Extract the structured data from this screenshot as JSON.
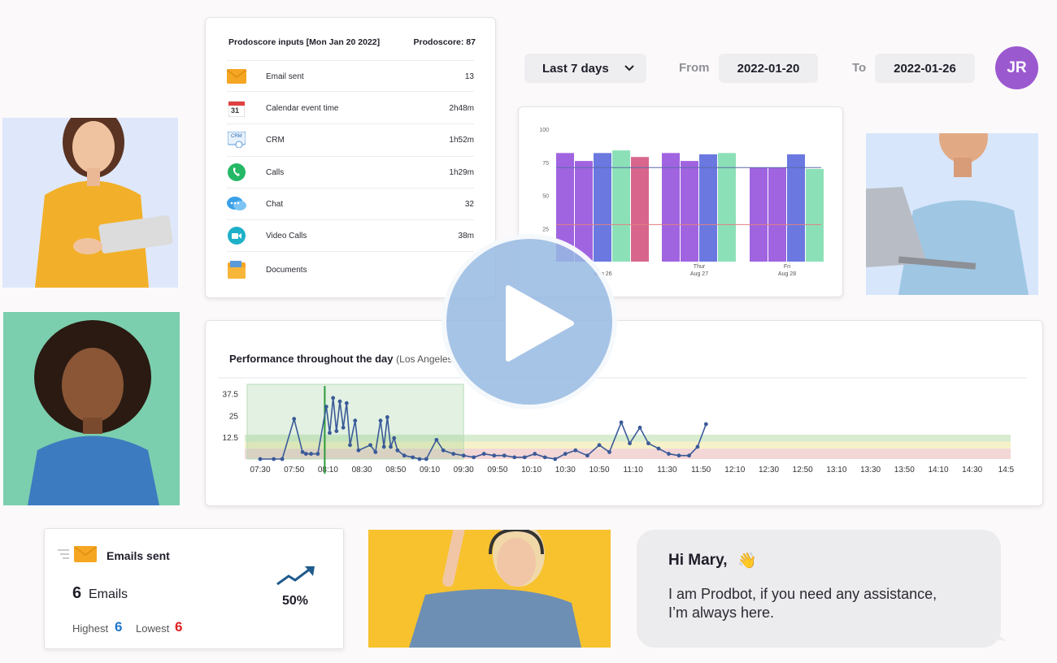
{
  "inputs_card": {
    "title": "Prodoscore inputs [Mon Jan 20 2022]",
    "score": "Prodoscore: 87",
    "rows": [
      {
        "icon": "envelope-icon",
        "label": "Email sent",
        "value": "13"
      },
      {
        "icon": "calendar-icon",
        "label": "Calendar event time",
        "value": "2h48m"
      },
      {
        "icon": "crm-icon",
        "label": "CRM",
        "value": "1h52m"
      },
      {
        "icon": "phone-icon",
        "label": "Calls",
        "value": "1h29m"
      },
      {
        "icon": "chat-icon",
        "label": "Chat",
        "value": "32"
      },
      {
        "icon": "video-icon",
        "label": "Video Calls",
        "value": "38m"
      },
      {
        "icon": "folder-icon",
        "label": "Documents",
        "value": ""
      }
    ],
    "calendar_day": "31",
    "crm_tag": "CRM"
  },
  "controls": {
    "range": "Last 7 days",
    "from_label": "From",
    "from_value": "2022-01-20",
    "to_label": "To",
    "to_value": "2022-01-26",
    "avatar_initials": "JR"
  },
  "colors": {
    "purple": "#a064e0",
    "blue": "#6b78e0",
    "green": "#8ce0b8",
    "pink": "#d8668c",
    "line": "#3a5a98",
    "accent_blue": "#1f77c9",
    "accent_red": "#e02020",
    "avatar": "#9b59d0"
  },
  "chart_data": [
    {
      "type": "bar",
      "ylim": [
        0,
        100
      ],
      "yticks": [
        "100",
        "75",
        "50",
        "25"
      ],
      "groups": [
        {
          "label": "",
          "date": "Aug 26",
          "values": [
            82,
            76,
            82,
            84,
            79
          ],
          "colors": [
            "#a064e0",
            "#a064e0",
            "#6b78e0",
            "#8ce0b8",
            "#d8668c"
          ]
        },
        {
          "label": "Thur",
          "date": "Aug 27",
          "values": [
            82,
            76,
            81,
            82
          ],
          "colors": [
            "#a064e0",
            "#a064e0",
            "#6b78e0",
            "#8ce0b8"
          ]
        },
        {
          "label": "Fri",
          "date": "Aug 28",
          "values": [
            71,
            71,
            81,
            70
          ],
          "colors": [
            "#a064e0",
            "#a064e0",
            "#6b78e0",
            "#8ce0b8"
          ]
        }
      ],
      "reference_lines": [
        71,
        28
      ]
    },
    {
      "type": "line",
      "title": "Performance throughout the day",
      "subtitle": "(Los Angeles)",
      "ylim": [
        0,
        40
      ],
      "yticks": [
        "37.5",
        "25",
        "12.5"
      ],
      "xticks": [
        "07:30",
        "07:50",
        "08:10",
        "08:30",
        "08:50",
        "09:10",
        "09:30",
        "09:50",
        "10:10",
        "10:30",
        "10:50",
        "11:10",
        "11:30",
        "11:50",
        "12:10",
        "12:30",
        "12:50",
        "13:10",
        "13:30",
        "13:50",
        "14:10",
        "14:30",
        "14:5"
      ],
      "points": [
        [
          0,
          0
        ],
        [
          0.8,
          0
        ],
        [
          1.3,
          0
        ],
        [
          2.0,
          23
        ],
        [
          2.5,
          4
        ],
        [
          2.7,
          3
        ],
        [
          3.0,
          3
        ],
        [
          3.4,
          3
        ],
        [
          3.9,
          30
        ],
        [
          4.1,
          15
        ],
        [
          4.3,
          35
        ],
        [
          4.5,
          16
        ],
        [
          4.7,
          33
        ],
        [
          4.9,
          18
        ],
        [
          5.1,
          32
        ],
        [
          5.3,
          8
        ],
        [
          5.6,
          22
        ],
        [
          5.8,
          5
        ],
        [
          6.5,
          8
        ],
        [
          6.8,
          4
        ],
        [
          7.1,
          22
        ],
        [
          7.3,
          7
        ],
        [
          7.5,
          24
        ],
        [
          7.7,
          7
        ],
        [
          7.9,
          12
        ],
        [
          8.1,
          5
        ],
        [
          8.5,
          2
        ],
        [
          9.0,
          1
        ],
        [
          9.4,
          0
        ],
        [
          9.8,
          0
        ],
        [
          10.4,
          11
        ],
        [
          10.8,
          5
        ],
        [
          11.4,
          3
        ],
        [
          12.0,
          2
        ],
        [
          12.6,
          1
        ],
        [
          13.2,
          3
        ],
        [
          13.8,
          2
        ],
        [
          14.4,
          2
        ],
        [
          15.0,
          1
        ],
        [
          15.6,
          1
        ],
        [
          16.2,
          3
        ],
        [
          16.8,
          1
        ],
        [
          17.4,
          0
        ],
        [
          18.0,
          3
        ],
        [
          18.6,
          5
        ],
        [
          19.3,
          2
        ],
        [
          20.0,
          8
        ],
        [
          20.6,
          4
        ],
        [
          21.3,
          21
        ],
        [
          21.8,
          9
        ],
        [
          22.4,
          18
        ],
        [
          22.9,
          9
        ],
        [
          23.5,
          6
        ],
        [
          24.1,
          3
        ],
        [
          24.7,
          2
        ],
        [
          25.3,
          2
        ],
        [
          25.8,
          7
        ],
        [
          26.3,
          20
        ]
      ],
      "selection_range": [
        "07:30",
        "09:30"
      ],
      "marker": "08:10"
    }
  ],
  "emails_card": {
    "title": "Emails sent",
    "count": "6",
    "count_unit": "Emails",
    "percent": "50%",
    "highest_label": "Highest",
    "highest_value": "6",
    "lowest_label": "Lowest",
    "lowest_value": "6"
  },
  "chat": {
    "greeting": "Hi Mary,",
    "wave": "👋",
    "line1": "I am Prodbot, if you need any assistance,",
    "line2": "I’m always here."
  }
}
